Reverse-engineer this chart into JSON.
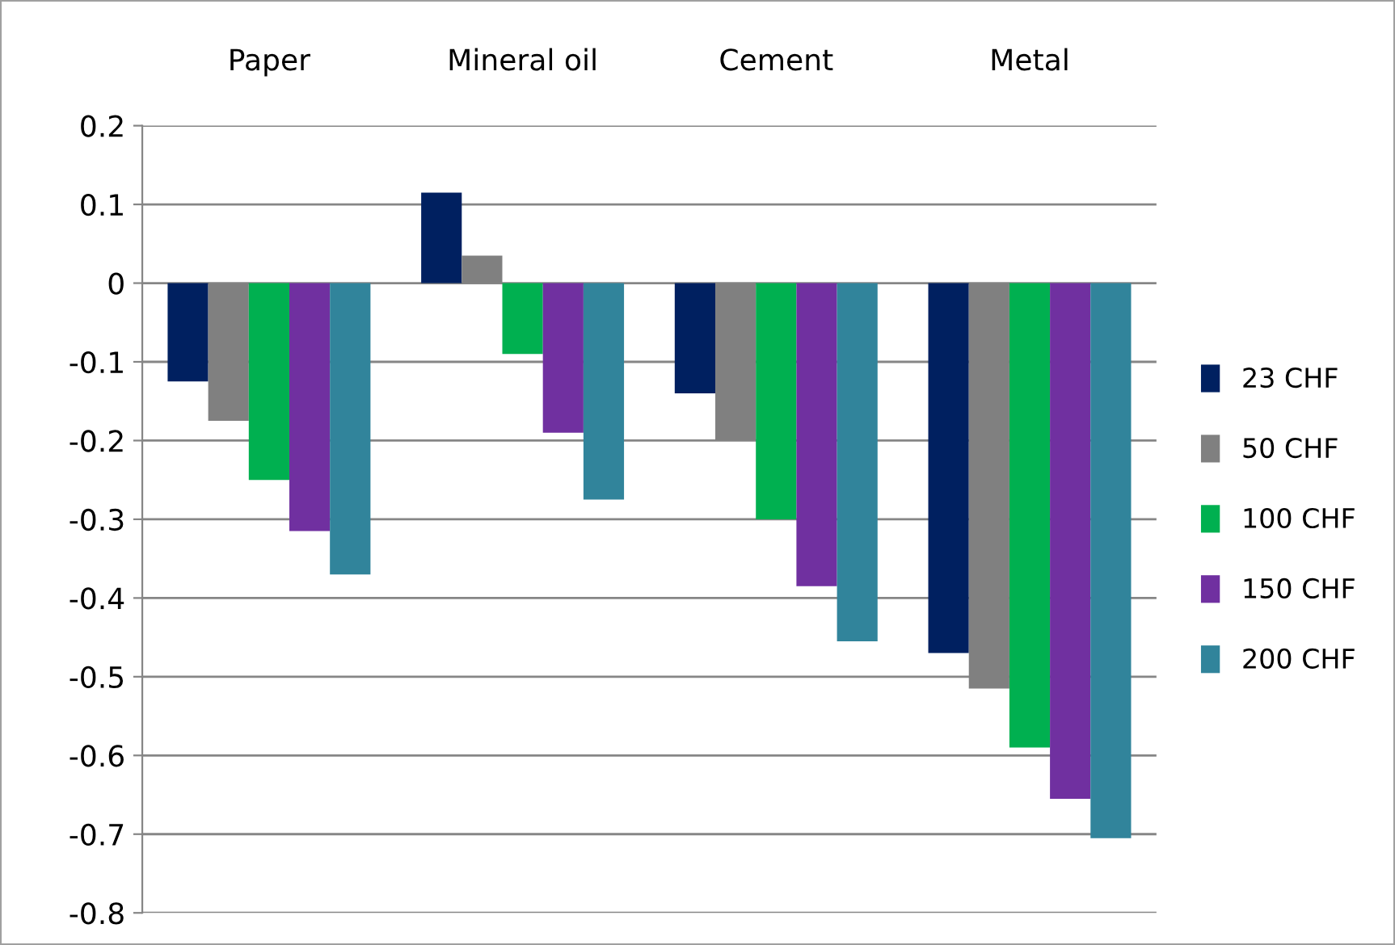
{
  "chart_data": {
    "type": "bar",
    "categories": [
      "Paper",
      "Mineral oil",
      "Cement",
      "Metal"
    ],
    "series": [
      {
        "name": "23 CHF",
        "color": "#002060",
        "values": [
          -0.125,
          0.115,
          -0.14,
          -0.47
        ]
      },
      {
        "name": "50 CHF",
        "color": "#808080",
        "values": [
          -0.175,
          0.035,
          -0.2,
          -0.515
        ]
      },
      {
        "name": "100 CHF",
        "color": "#00b050",
        "values": [
          -0.25,
          -0.09,
          -0.3,
          -0.59
        ]
      },
      {
        "name": "150 CHF",
        "color": "#7030a0",
        "values": [
          -0.315,
          -0.19,
          -0.385,
          -0.655
        ]
      },
      {
        "name": "200 CHF",
        "color": "#31849b",
        "values": [
          -0.37,
          -0.275,
          -0.455,
          -0.705
        ]
      }
    ],
    "ylim": [
      -0.8,
      0.2
    ],
    "yticks": [
      -0.8,
      -0.7,
      -0.6,
      -0.5,
      -0.4,
      -0.3,
      -0.2,
      -0.1,
      0,
      0.1,
      0.2
    ],
    "grid": "y",
    "legend": "right"
  }
}
